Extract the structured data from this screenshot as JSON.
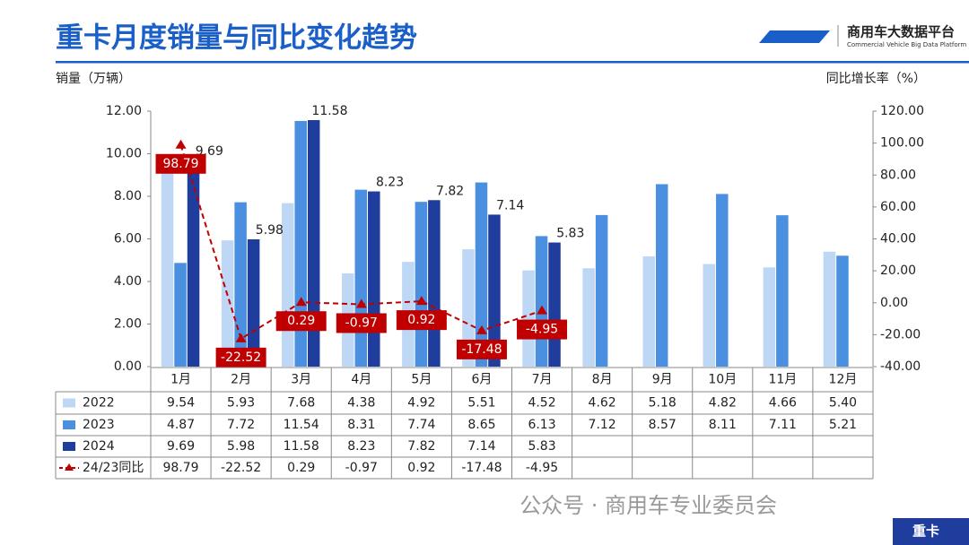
{
  "header": {
    "title": "重卡月度销量与同比变化趋势",
    "logo_name": "商用车大数据平台",
    "logo_sub": "Commercial Vehicle Big Data Platform"
  },
  "footer": {
    "watermark": "公众号 · 商用车专业委员会",
    "tag": "重卡"
  },
  "chart_data": {
    "type": "bar",
    "ylabel": "销量（万辆）",
    "y2label": "同比增长率（%）",
    "categories": [
      "1月",
      "2月",
      "3月",
      "4月",
      "5月",
      "6月",
      "7月",
      "8月",
      "9月",
      "10月",
      "11月",
      "12月"
    ],
    "series": [
      {
        "name": "2022",
        "color": "#bdd7f5",
        "values": [
          9.54,
          5.93,
          7.68,
          4.38,
          4.92,
          5.51,
          4.52,
          4.62,
          5.18,
          4.82,
          4.66,
          5.4
        ],
        "value_labels": [
          "9.54",
          "5.93",
          "7.68",
          "4.38",
          "4.92",
          "5.51",
          "4.52",
          "4.62",
          "5.18",
          "4.82",
          "4.66",
          "5.40"
        ]
      },
      {
        "name": "2023",
        "color": "#4a8fe0",
        "values": [
          4.87,
          7.72,
          11.54,
          8.31,
          7.74,
          8.65,
          6.13,
          7.12,
          8.57,
          8.11,
          7.11,
          5.21
        ],
        "value_labels": [
          "4.87",
          "7.72",
          "11.54",
          "8.31",
          "7.74",
          "8.65",
          "6.13",
          "7.12",
          "8.57",
          "8.11",
          "7.11",
          "5.21"
        ]
      },
      {
        "name": "2024",
        "color": "#1f3d9c",
        "values": [
          9.69,
          5.98,
          11.58,
          8.23,
          7.82,
          7.14,
          5.83,
          null,
          null,
          null,
          null,
          null
        ],
        "value_labels": [
          "9.69",
          "5.98",
          "11.58",
          "8.23",
          "7.82",
          "7.14",
          "5.83",
          null,
          null,
          null,
          null,
          null
        ]
      },
      {
        "name": "24/23同比",
        "type": "line",
        "axis": "y2",
        "color": "#c00000",
        "values": [
          98.79,
          -22.52,
          0.29,
          -0.97,
          0.92,
          -17.48,
          -4.95,
          null,
          null,
          null,
          null,
          null
        ]
      }
    ],
    "ylim": [
      0,
      12
    ],
    "yticks": [
      {
        "value": 0,
        "label": "0.00"
      },
      {
        "value": 2,
        "label": "2.00"
      },
      {
        "value": 4,
        "label": "4.00"
      },
      {
        "value": 6,
        "label": "6.00"
      },
      {
        "value": 8,
        "label": "8.00"
      },
      {
        "value": 10,
        "label": "10.00"
      },
      {
        "value": 12,
        "label": "12.00"
      }
    ],
    "y2lim": [
      -40,
      120
    ],
    "y2ticks": [
      {
        "value": -40,
        "label": "-40.00"
      },
      {
        "value": -20,
        "label": "-20.00"
      },
      {
        "value": 0,
        "label": "0.00"
      },
      {
        "value": 20,
        "label": "20.00"
      },
      {
        "value": 40,
        "label": "40.00"
      },
      {
        "value": 60,
        "label": "60.00"
      },
      {
        "value": 80,
        "label": "80.00"
      },
      {
        "value": 100,
        "label": "100.00"
      },
      {
        "value": 120,
        "label": "120.00"
      }
    ],
    "grid": false
  }
}
